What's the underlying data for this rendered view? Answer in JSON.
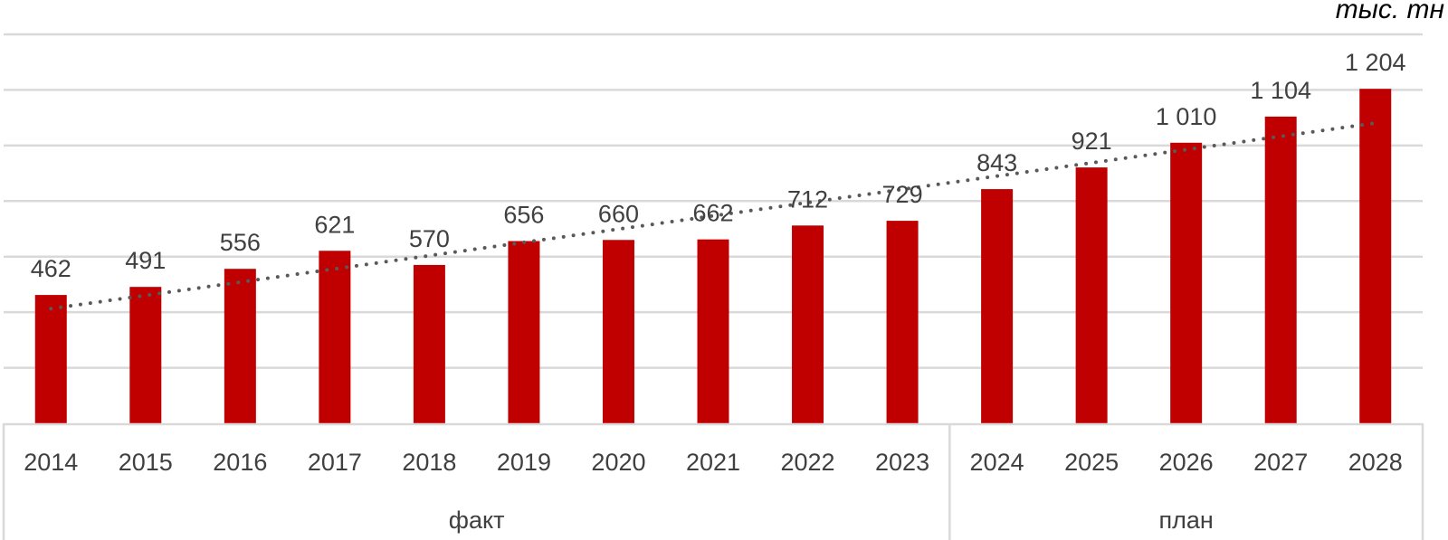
{
  "unit_label": "тыс. тн",
  "colors": {
    "bar": "#C00000",
    "trendline": "#595959",
    "gridline": "#D9D9D9",
    "text": "#404040"
  },
  "chart_data": {
    "type": "bar",
    "categories": [
      "2014",
      "2015",
      "2016",
      "2017",
      "2018",
      "2019",
      "2020",
      "2021",
      "2022",
      "2023",
      "2024",
      "2025",
      "2026",
      "2027",
      "2028"
    ],
    "values": [
      462,
      491,
      556,
      621,
      570,
      656,
      660,
      662,
      712,
      729,
      843,
      921,
      1010,
      1104,
      1204
    ],
    "data_labels": [
      "462",
      "491",
      "556",
      "621",
      "570",
      "656",
      "660",
      "662",
      "712",
      "729",
      "843",
      "921",
      "1 010",
      "1 104",
      "1 204"
    ],
    "groups": [
      {
        "label": "факт",
        "categories": [
          "2014",
          "2015",
          "2016",
          "2017",
          "2018",
          "2019",
          "2020",
          "2021",
          "2022",
          "2023"
        ]
      },
      {
        "label": "план",
        "categories": [
          "2024",
          "2025",
          "2026",
          "2027",
          "2028"
        ]
      }
    ],
    "trendline": {
      "type": "linear",
      "style": "dotted"
    },
    "ylabel": "тыс. тн",
    "ylim": [
      0,
      1400
    ],
    "grid": true,
    "y_tick_labels_shown": false
  }
}
